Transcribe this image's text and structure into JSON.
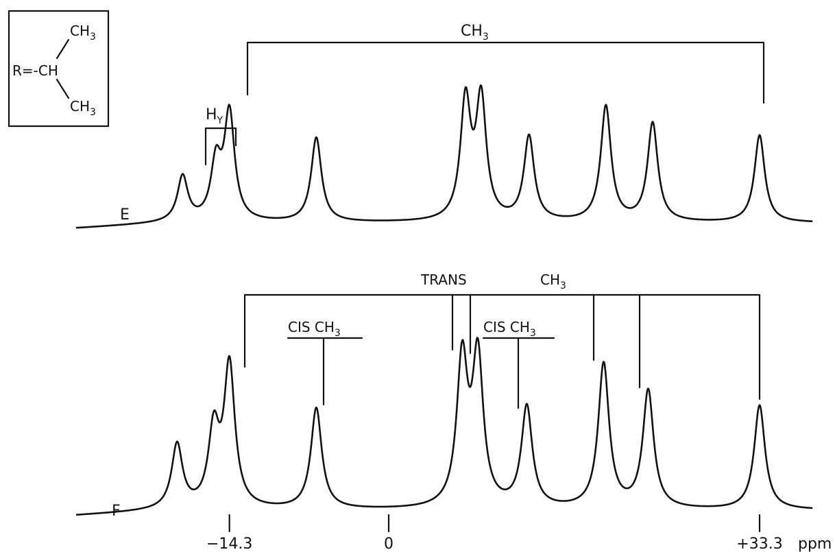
{
  "chart_data": [
    {
      "type": "line",
      "trace_label": "E",
      "annotations": {
        "top_bracket_label": "CH",
        "top_bracket_sub": "3",
        "h_bracket_label": "H",
        "h_bracket_sub": "Y"
      },
      "peaks": [
        {
          "x": -18.5,
          "y": 0.32
        },
        {
          "x": -15.5,
          "y": 0.4
        },
        {
          "x": -14.3,
          "y": 0.76
        },
        {
          "x": -6.5,
          "y": 0.6
        },
        {
          "x": 6.9,
          "y": 0.84
        },
        {
          "x": 8.3,
          "y": 0.85
        },
        {
          "x": 12.6,
          "y": 0.6
        },
        {
          "x": 19.5,
          "y": 0.82
        },
        {
          "x": 23.7,
          "y": 0.7
        },
        {
          "x": 33.3,
          "y": 0.62
        }
      ]
    },
    {
      "type": "line",
      "trace_label": "F",
      "annotations": {
        "trans_label": "TRANS",
        "ch3_label": "CH",
        "ch3_sub": "3",
        "cis_left_label": "CIS CH",
        "cis_left_sub": "3",
        "cis_right_label": "CIS CH",
        "cis_right_sub": "3"
      },
      "peaks": [
        {
          "x": -19.0,
          "y": 0.38
        },
        {
          "x": -15.7,
          "y": 0.45
        },
        {
          "x": -14.3,
          "y": 0.84
        },
        {
          "x": -6.5,
          "y": 0.6
        },
        {
          "x": 6.6,
          "y": 0.87
        },
        {
          "x": 8.0,
          "y": 0.88
        },
        {
          "x": 12.4,
          "y": 0.6
        },
        {
          "x": 19.3,
          "y": 0.86
        },
        {
          "x": 23.3,
          "y": 0.7
        },
        {
          "x": 33.3,
          "y": 0.62
        }
      ]
    }
  ],
  "x_axis": {
    "ticks": [
      {
        "value": -14.3,
        "label": "−14.3"
      },
      {
        "value": 0,
        "label": "0"
      },
      {
        "value": 33.3,
        "label": "+33.3"
      }
    ],
    "unit": "ppm",
    "xlim": [
      -28,
      38
    ]
  },
  "inset": {
    "prefix": "R=-CH",
    "branch_top": "CH",
    "branch_top_sub": "3",
    "branch_bottom": "CH",
    "branch_bottom_sub": "3"
  }
}
